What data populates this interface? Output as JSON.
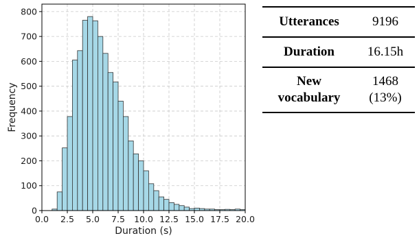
{
  "chart_data": {
    "type": "bar",
    "subtype": "histogram",
    "xlabel": "Duration (s)",
    "ylabel": "Frequency",
    "xlim": [
      0.0,
      20.0
    ],
    "ylim": [
      0,
      830
    ],
    "xticks": [
      "0.0",
      "2.5",
      "5.0",
      "7.5",
      "10.0",
      "12.5",
      "15.0",
      "17.5",
      "20.0"
    ],
    "yticks": [
      "0",
      "100",
      "200",
      "300",
      "400",
      "500",
      "600",
      "700",
      "800"
    ],
    "grid": true,
    "bar_color": "#a6d8e7",
    "edge_color": "#333333",
    "bin_start": 0.5,
    "bin_width": 0.5,
    "values": [
      0,
      6,
      75,
      252,
      378,
      605,
      643,
      765,
      780,
      763,
      700,
      632,
      555,
      517,
      440,
      378,
      280,
      228,
      200,
      160,
      108,
      80,
      55,
      45,
      32,
      25,
      20,
      14,
      8,
      10,
      8,
      6,
      6,
      4,
      4,
      5,
      4,
      6,
      4
    ]
  },
  "stats_table": {
    "rows": [
      {
        "key": "Utterances",
        "value": "9196"
      },
      {
        "key": "Duration",
        "value": "16.15h"
      },
      {
        "key_line1": "New",
        "key_line2": "vocabulary",
        "value_line1": "1468",
        "value_line2": "(13%)"
      }
    ]
  }
}
